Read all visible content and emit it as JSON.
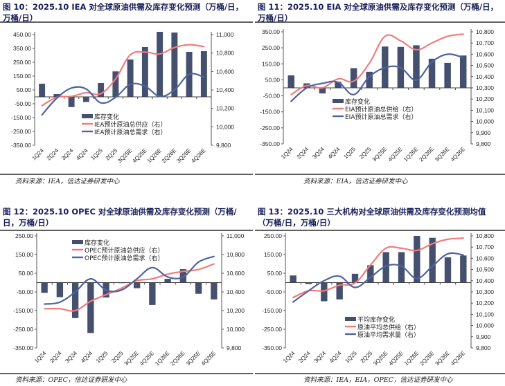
{
  "colors": {
    "bar": "#44506e",
    "supply": "#f47a7a",
    "demand": "#4e63a0",
    "title": "#1a1f5a"
  },
  "chart_data": [
    {
      "id": "fig10",
      "type": "bar+line",
      "title": "图 10：2025.10 IEA 对全球原油供需及库存变化预测（万桶/日，万桶/日）",
      "title_lines": [
        "图 10：2025.10 IEA 对全球原油供需及库存变化预测（万桶/日，",
        "万桶/日）"
      ],
      "source": "资料来源：IEA，信达证券研发中心",
      "categories": [
        "1Q24",
        "2Q24",
        "3Q24",
        "4Q24",
        "1Q25",
        "2Q25",
        "3Q25E",
        "4Q25E",
        "1Q26E",
        "2Q26E",
        "3Q26E",
        "4Q26E"
      ],
      "left_axis": {
        "ylim": [
          -350,
          450
        ],
        "ticks": [
          "450.00",
          "350.00",
          "250.00",
          "150.00",
          "50.00",
          "-50.00",
          "-150.00",
          "-250.00",
          "-350.00"
        ],
        "tick_values": [
          450,
          350,
          250,
          150,
          50,
          -50,
          -150,
          -250,
          -350
        ]
      },
      "right_axis": {
        "ylim": [
          9800,
          11000
        ],
        "ticks": [
          "11,000",
          "10,800",
          "10,600",
          "10,400",
          "10,200",
          "10,000",
          "9,800"
        ],
        "tick_values": [
          11000,
          10800,
          10600,
          10400,
          10200,
          10000,
          9800
        ]
      },
      "legend_position": "lower-middle",
      "series": [
        {
          "name": "库存变化",
          "kind": "bar",
          "axis": "left",
          "values": [
            95,
            20,
            -74,
            -37,
            100,
            184,
            270,
            360,
            470,
            465,
            325,
            330
          ]
        },
        {
          "name": "IEA预计原油总供应（右）",
          "kind": "line",
          "axis": "right",
          "color_key": "supply",
          "values": [
            10230,
            10320,
            10330,
            10370,
            10360,
            10520,
            10780,
            10810,
            10790,
            10860,
            10890,
            10870
          ]
        },
        {
          "name": "IEA预计原油总需求（右）",
          "kind": "line",
          "axis": "right",
          "color_key": "demand",
          "values": [
            10130,
            10310,
            10420,
            10410,
            10260,
            10320,
            10460,
            10440,
            10330,
            10400,
            10570,
            10540
          ]
        }
      ]
    },
    {
      "id": "fig11",
      "type": "bar+line",
      "title": "图 11：2025.10 EIA 对全球原油供需及库存变化预测（万桶/日，万桶/日）",
      "title_lines": [
        "图 11：2025.10 EIA 对全球原油供需及库存变化预测（万桶/日，",
        "万桶/日）"
      ],
      "source": "资料来源：EIA，信达证券研发中心",
      "categories": [
        "1Q24",
        "2Q24",
        "3Q24",
        "4Q24",
        "1Q25",
        "2Q25",
        "3Q25E",
        "4Q25E",
        "1Q26E",
        "2Q26E",
        "3Q26E",
        "4Q26E"
      ],
      "left_axis": {
        "ylim": [
          -350,
          350
        ],
        "ticks": [
          "350.00",
          "250.00",
          "150.00",
          "50.00",
          "-50.00",
          "-150.00",
          "-250.00",
          "-350.00"
        ],
        "tick_values": [
          350,
          250,
          150,
          50,
          -50,
          -150,
          -250,
          -350
        ]
      },
      "right_axis": {
        "ylim": [
          9800,
          10800
        ],
        "ticks": [
          "10,800",
          "10,700",
          "10,600",
          "10,500",
          "10,400",
          "10,300",
          "10,200",
          "10,100",
          "10,000",
          "9,900",
          "9,800"
        ],
        "tick_values": [
          10800,
          10700,
          10600,
          10500,
          10400,
          10300,
          10200,
          10100,
          10000,
          9900,
          9800
        ]
      },
      "legend_position": "lower-middle",
      "series": [
        {
          "name": "库存变化",
          "kind": "bar",
          "axis": "left",
          "values": [
            78,
            28,
            -35,
            38,
            123,
            100,
            258,
            256,
            266,
            182,
            156,
            202
          ]
        },
        {
          "name": "EIA预计原油总供给（右）",
          "kind": "line",
          "axis": "right",
          "color_key": "supply",
          "values": [
            10240,
            10320,
            10300,
            10380,
            10360,
            10520,
            10760,
            10720,
            10640,
            10700,
            10760,
            10780
          ]
        },
        {
          "name": "EIA预计原油总需求（右）",
          "kind": "line",
          "axis": "right",
          "color_key": "demand",
          "values": [
            10180,
            10300,
            10340,
            10350,
            10240,
            10400,
            10480,
            10480,
            10370,
            10530,
            10600,
            10570
          ]
        }
      ]
    },
    {
      "id": "fig12",
      "type": "bar+line",
      "title": "图 12：2025.10 OPEC 对全球原油供需及库存变化预测（万桶/日，万桶/日）",
      "title_lines": [
        "图 12：2025.10 OPEC 对全球原油供需及库存变化预测（万桶/",
        "日，万桶/日）"
      ],
      "source": "资料来源：OPEC，信达证券研发中心",
      "categories": [
        "1Q24",
        "2Q24",
        "3Q24",
        "4Q24",
        "1Q25",
        "2Q25",
        "3Q25E",
        "4Q25E",
        "1Q26E",
        "2Q26E",
        "3Q26E",
        "4Q26E"
      ],
      "left_axis": {
        "ylim": [
          -350,
          250
        ],
        "ticks": [
          "250.00",
          "150.00",
          "50.00",
          "-50.00",
          "-150.00",
          "-250.00",
          "-350.00"
        ],
        "tick_values": [
          250,
          150,
          50,
          -50,
          -150,
          -250,
          -350
        ]
      },
      "right_axis": {
        "ylim": [
          9800,
          11000
        ],
        "ticks": [
          "11,000",
          "10,800",
          "10,600",
          "10,400",
          "10,200",
          "10,000",
          "9,800"
        ],
        "tick_values": [
          11000,
          10800,
          10600,
          10400,
          10200,
          10000,
          9800
        ]
      },
      "legend_position": "top-middle",
      "series": [
        {
          "name": "库存变化",
          "kind": "bar",
          "axis": "left",
          "values": [
            -55,
            -78,
            -190,
            -270,
            -80,
            0,
            -30,
            -120,
            20,
            72,
            -60,
            -90
          ]
        },
        {
          "name": "OPEC预计原油总供应（右）",
          "kind": "line",
          "axis": "right",
          "color_key": "supply",
          "values": [
            10220,
            10220,
            10200,
            10300,
            10370,
            10440,
            10520,
            10540,
            10590,
            10620,
            10640,
            10700
          ]
        },
        {
          "name": "OPEC预计原油总需求（右）",
          "kind": "line",
          "axis": "right",
          "color_key": "demand",
          "values": [
            10270,
            10290,
            10400,
            10540,
            10420,
            10420,
            10540,
            10660,
            10560,
            10560,
            10720,
            10780
          ]
        }
      ]
    },
    {
      "id": "fig13",
      "type": "bar+line",
      "title": "图 13：2025.10 三大机构对全球原油供需及库存变化预测均值（万桶/日，万桶/日）",
      "title_lines": [
        "图 13：2025.10 三大机构对全球原油供需及库存变化预测均值",
        "（万桶/日，万桶/日）"
      ],
      "source": "资料来源：IEA，EIA，OPEC，信达证券研发中心",
      "categories": [
        "1Q24",
        "2Q24",
        "3Q24",
        "4Q24",
        "1Q25",
        "2Q25",
        "3Q25E",
        "4Q25E",
        "1Q26E",
        "2Q26E",
        "3Q26E",
        "4Q26E"
      ],
      "left_axis": {
        "ylim": [
          -350,
          250
        ],
        "ticks": [
          "250.00",
          "150.00",
          "50.00",
          "-50.00",
          "-150.00",
          "-250.00",
          "-350.00"
        ],
        "tick_values": [
          250,
          150,
          50,
          -50,
          -150,
          -250,
          -350
        ]
      },
      "right_axis": {
        "ylim": [
          9800,
          10800
        ],
        "ticks": [
          "10,800",
          "10,700",
          "10,600",
          "10,500",
          "10,400",
          "10,300",
          "10,200",
          "10,100",
          "10,000",
          "9,900",
          "9,800"
        ],
        "tick_values": [
          10800,
          10700,
          10600,
          10500,
          10400,
          10300,
          10200,
          10100,
          10000,
          9900,
          9800
        ]
      },
      "legend_position": "lower-middle",
      "series": [
        {
          "name": "平均库存变化",
          "kind": "bar",
          "axis": "left",
          "values": [
            38,
            -8,
            -100,
            -90,
            47,
            93,
            163,
            163,
            250,
            240,
            135,
            145
          ]
        },
        {
          "name": "原油平均总供给（右）",
          "kind": "line",
          "axis": "right",
          "color_key": "supply",
          "values": [
            10250,
            10310,
            10310,
            10360,
            10380,
            10540,
            10690,
            10690,
            10670,
            10730,
            10770,
            10780
          ]
        },
        {
          "name": "原油平均需求量（右）",
          "kind": "line",
          "axis": "right",
          "color_key": "demand",
          "values": [
            10210,
            10310,
            10400,
            10440,
            10340,
            10430,
            10530,
            10530,
            10420,
            10530,
            10640,
            10630
          ]
        }
      ]
    }
  ]
}
